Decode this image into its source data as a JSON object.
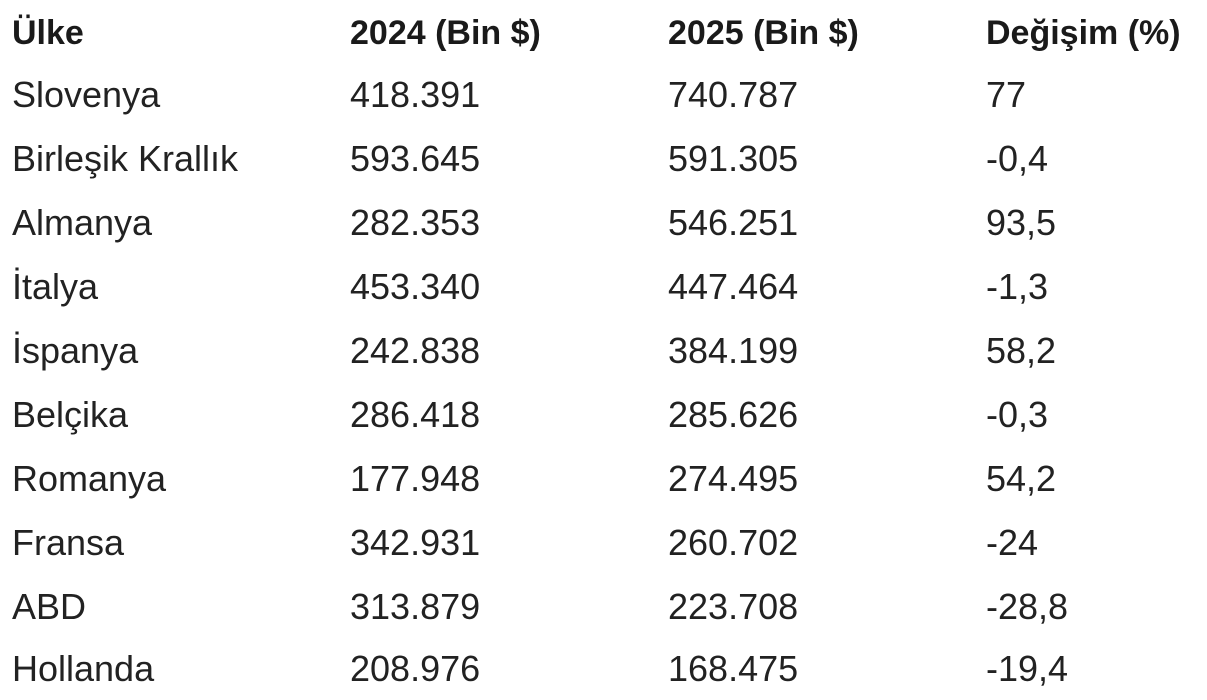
{
  "table": {
    "headers": [
      "Ülke",
      "2024 (Bin $)",
      "2025 (Bin $)",
      "Değişim (%)"
    ],
    "rows": [
      [
        "Slovenya",
        "418.391",
        "740.787",
        "77"
      ],
      [
        "Birleşik Krallık",
        "593.645",
        "591.305",
        "-0,4"
      ],
      [
        "Almanya",
        "282.353",
        "546.251",
        "93,5"
      ],
      [
        "İtalya",
        "453.340",
        "447.464",
        "-1,3"
      ],
      [
        "İspanya",
        "242.838",
        "384.199",
        "58,2"
      ],
      [
        "Belçika",
        "286.418",
        "285.626",
        "-0,3"
      ],
      [
        "Romanya",
        "177.948",
        "274.495",
        "54,2"
      ],
      [
        "Fransa",
        "342.931",
        "260.702",
        "-24"
      ],
      [
        "ABD",
        "313.879",
        "223.708",
        "-28,8"
      ],
      [
        "Hollanda",
        "208.976",
        "168.475",
        "-19,4"
      ]
    ]
  }
}
